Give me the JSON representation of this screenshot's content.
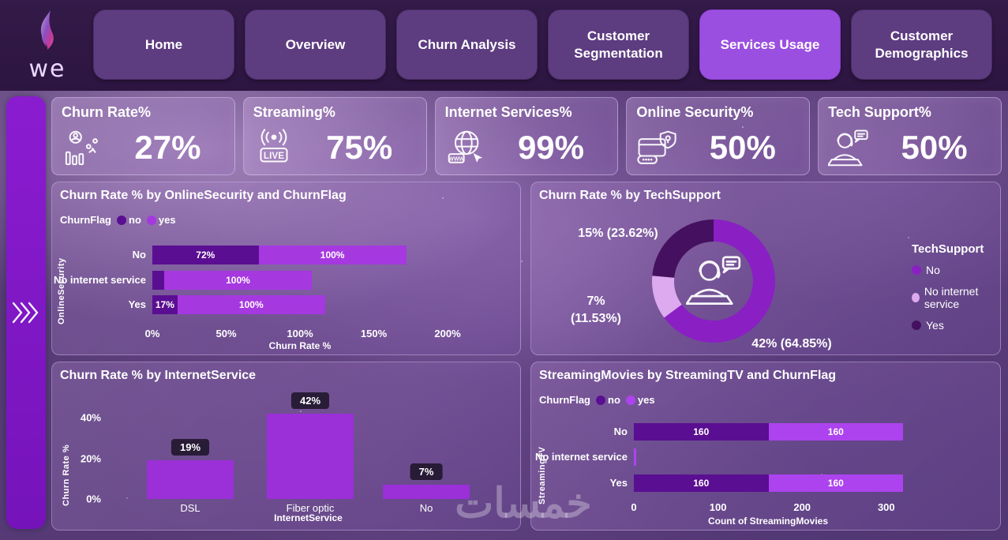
{
  "nav": {
    "logo_text": "we",
    "tabs": [
      {
        "label": "Home",
        "active": false
      },
      {
        "label": "Overview",
        "active": false
      },
      {
        "label": "Churn Analysis",
        "active": false
      },
      {
        "label": "Customer Segmentation",
        "active": false
      },
      {
        "label": "Services Usage",
        "active": true
      },
      {
        "label": "Customer Demographics",
        "active": false
      }
    ]
  },
  "kpi_cards": [
    {
      "title": "Churn Rate%",
      "value": "27%",
      "icon": "churn-people-chart-icon"
    },
    {
      "title": "Streaming%",
      "value": "75%",
      "icon": "live-broadcast-icon"
    },
    {
      "title": "Internet Services%",
      "value": "99%",
      "icon": "globe-www-icon"
    },
    {
      "title": "Online Security%",
      "value": "50%",
      "icon": "card-shield-lock-icon"
    },
    {
      "title": "Tech Support%",
      "value": "50%",
      "icon": "support-agent-icon"
    }
  ],
  "sidebar": {
    "icon": "triple-chevron-right-icon"
  },
  "watermark": "خمسات",
  "colors": {
    "churn_no": "#5a0e91",
    "churn_yes_bar": "#a638e0",
    "churn_yes_bar2": "#ad43ee",
    "column_bar": "#9b2fd8",
    "donut_no": "#8a1fc4",
    "donut_no_internet": "#dda9ef",
    "donut_yes": "#45105f",
    "nav_active": "#9a4fe0"
  },
  "chart_data": [
    {
      "type": "bar",
      "variant": "stacked-horizontal",
      "title": "Churn Rate % by OnlineSecurity and ChurnFlag",
      "legend_title": "ChurnFlag",
      "y_axis_title": "OnlineSecurity",
      "x_axis_title": "Churn Rate %",
      "categories": [
        "No",
        "No internet service",
        "Yes"
      ],
      "series": [
        {
          "name": "no",
          "color": "#5a0e91",
          "values": [
            72,
            8,
            17
          ]
        },
        {
          "name": "yes",
          "color": "#a638e0",
          "values": [
            100,
            100,
            100
          ]
        }
      ],
      "value_suffix": "%",
      "x_ticks": [
        "0%",
        "50%",
        "100%",
        "150%",
        "200%"
      ],
      "xlim": [
        0,
        242
      ]
    },
    {
      "type": "pie",
      "variant": "donut",
      "title": "Churn Rate % by TechSupport",
      "legend_title": "TechSupport",
      "center_icon": "support-agent-icon",
      "slices": [
        {
          "label": "No",
          "pct": 64.85,
          "value_label": "42% (64.85%)",
          "color": "#8a1fc4"
        },
        {
          "label": "No internet service",
          "pct": 11.53,
          "value_label": "7% (11.53%)",
          "color": "#dda9ef"
        },
        {
          "label": "Yes",
          "pct": 23.62,
          "value_label": "15% (23.62%)",
          "color": "#45105f"
        }
      ]
    },
    {
      "type": "bar",
      "variant": "column",
      "title": "Churn Rate % by InternetService",
      "y_axis_title": "Churn Rate %",
      "x_axis_title": "InternetService",
      "categories": [
        "DSL",
        "Fiber optic",
        "No"
      ],
      "values": [
        19,
        42,
        7
      ],
      "labels": [
        "19%",
        "42%",
        "7%"
      ],
      "bar_color": "#9b2fd8",
      "y_ticks": [
        "0%",
        "20%",
        "40%"
      ],
      "ylim": [
        0,
        45
      ]
    },
    {
      "type": "bar",
      "variant": "stacked-horizontal",
      "title": "StreamingMovies by StreamingTV and ChurnFlag",
      "legend_title": "ChurnFlag",
      "y_axis_title": "StreamingTV",
      "x_axis_title": "Count of StreamingMovies",
      "categories": [
        "No",
        "No internet service",
        "Yes"
      ],
      "series": [
        {
          "name": "no",
          "color": "#5a0e91",
          "values": [
            160,
            0,
            160
          ]
        },
        {
          "name": "yes",
          "color": "#ad43ee",
          "values": [
            160,
            3,
            160
          ]
        }
      ],
      "value_suffix": "",
      "x_ticks": [
        "0",
        "100",
        "200",
        "300"
      ],
      "xlim": [
        0,
        320
      ]
    }
  ]
}
